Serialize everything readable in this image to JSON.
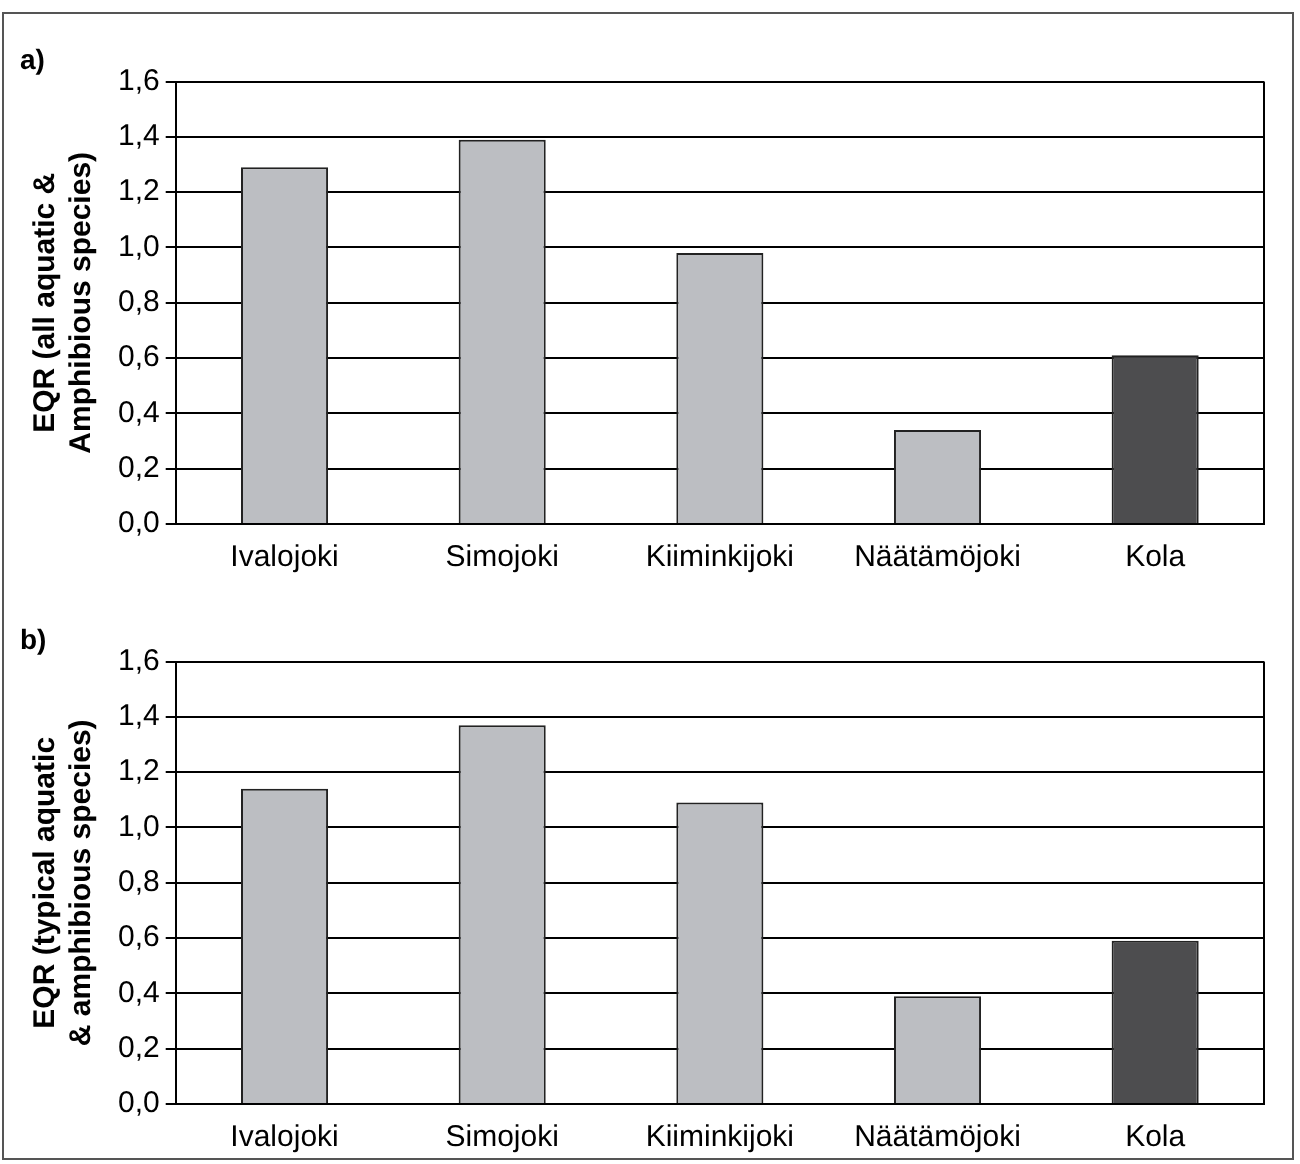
{
  "chart_data": [
    {
      "type": "bar",
      "title": "a)",
      "ylabel": "EQR (all aquatic & Amphibious species)",
      "categories": [
        "Ivalojoki",
        "Simojoki",
        "Kiiminkijoki",
        "Näätämöjoki",
        "Kola"
      ],
      "values": [
        1.29,
        1.39,
        0.98,
        0.34,
        0.61
      ],
      "colors": [
        "#bcbec2",
        "#bcbec2",
        "#bcbec2",
        "#bcbec2",
        "#4d4d4f"
      ],
      "ylim": [
        0,
        1.6
      ],
      "yticks": [
        {
          "value": 0,
          "label": "0,0"
        },
        {
          "value": 0.2,
          "label": "0,2"
        },
        {
          "value": 0.4,
          "label": "0,4"
        },
        {
          "value": 0.6,
          "label": "0,6"
        },
        {
          "value": 0.8,
          "label": "0,8"
        },
        {
          "value": 1.0,
          "label": "1,0"
        },
        {
          "value": 1.2,
          "label": "1,2"
        },
        {
          "value": 1.4,
          "label": "1,4"
        },
        {
          "value": 1.6,
          "label": "1,6"
        }
      ],
      "grid": "y",
      "legend": false
    },
    {
      "type": "bar",
      "title": "b)",
      "ylabel": "EQR (typical aquatic & amphibious species)",
      "categories": [
        "Ivalojoki",
        "Simojoki",
        "Kiiminkijoki",
        "Näätämöjoki",
        "Kola"
      ],
      "values": [
        1.14,
        1.37,
        1.09,
        0.39,
        0.59
      ],
      "colors": [
        "#bcbec2",
        "#bcbec2",
        "#bcbec2",
        "#bcbec2",
        "#4d4d4f"
      ],
      "ylim": [
        0,
        1.6
      ],
      "yticks": [
        {
          "value": 0,
          "label": "0,0"
        },
        {
          "value": 0.2,
          "label": "0,2"
        },
        {
          "value": 0.4,
          "label": "0,4"
        },
        {
          "value": 0.6,
          "label": "0,6"
        },
        {
          "value": 0.8,
          "label": "0,8"
        },
        {
          "value": 1.0,
          "label": "1,0"
        },
        {
          "value": 1.2,
          "label": "1,2"
        },
        {
          "value": 1.4,
          "label": "1,4"
        },
        {
          "value": 1.6,
          "label": "1,6"
        }
      ],
      "grid": "y",
      "legend": false
    }
  ]
}
